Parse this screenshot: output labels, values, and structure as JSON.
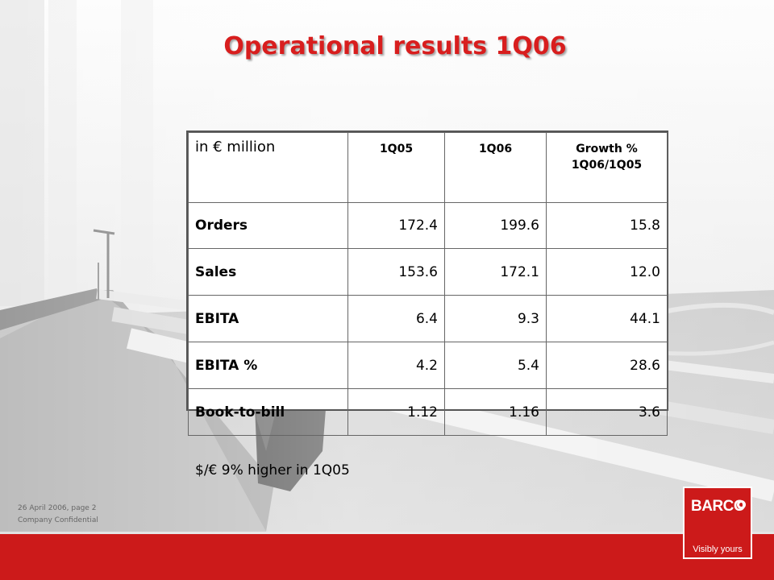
{
  "slide": {
    "title": "Operational results 1Q06",
    "note": "$/€ 9% higher in 1Q05"
  },
  "table": {
    "unit_label": "in € million",
    "headers": [
      "1Q05",
      "1Q06",
      "Growth %",
      "1Q06/1Q05"
    ],
    "rows": [
      {
        "label": "Orders",
        "values": [
          "172.4",
          "199.6",
          "15.8"
        ]
      },
      {
        "label": "Sales",
        "values": [
          "153.6",
          "172.1",
          "12.0"
        ]
      },
      {
        "label": "EBITA",
        "values": [
          "6.4",
          "9.3",
          "44.1"
        ]
      },
      {
        "label": "EBITA %",
        "values": [
          "4.2",
          "5.4",
          "28.6"
        ]
      },
      {
        "label": "Book-to-bill",
        "values": [
          "1.12",
          "1.16",
          "3.6"
        ]
      }
    ]
  },
  "footer": {
    "date_page": "26 April 2006, page 2",
    "confidential": "Company Confidential"
  },
  "logo": {
    "wordmark": "BARCO",
    "tagline": "Visibly yours"
  },
  "colors": {
    "accent_red": "#cc1a1a",
    "title_red": "#d81e1e"
  }
}
